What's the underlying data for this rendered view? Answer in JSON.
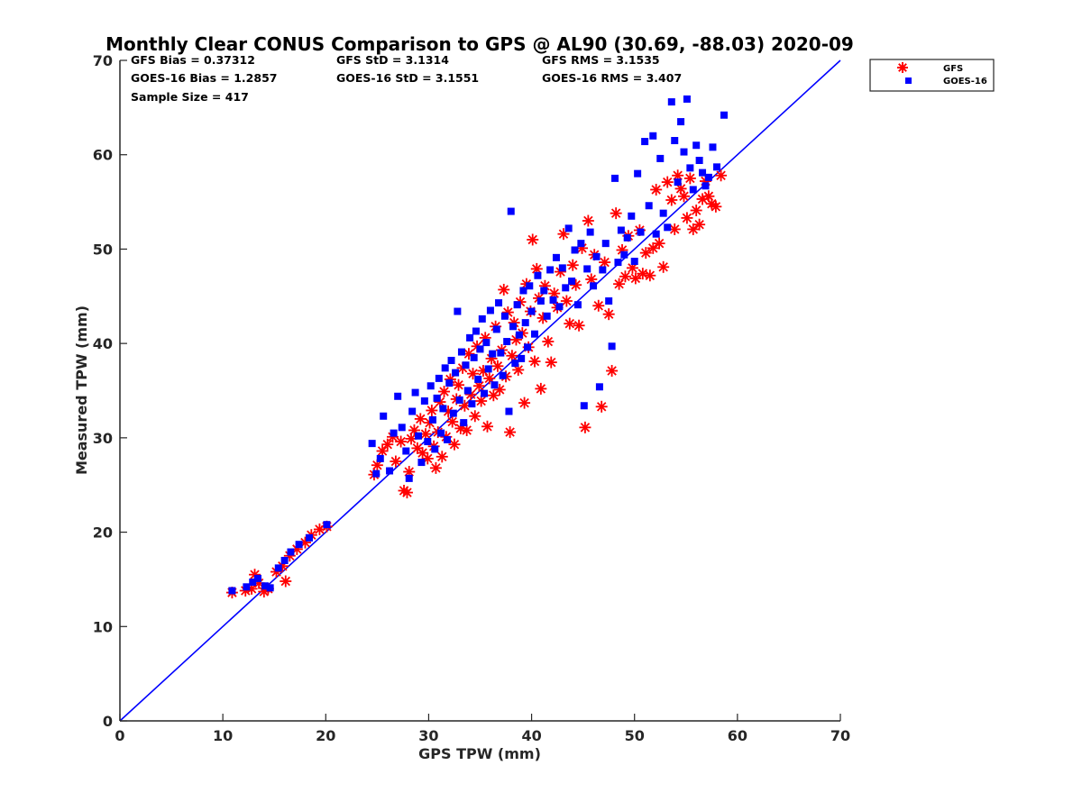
{
  "chart_data": {
    "type": "scatter",
    "title": "Monthly Clear CONUS Comparison to GPS @ AL90 (30.69, -88.03) 2020-09",
    "xlabel": "GPS TPW (mm)",
    "ylabel": "Measured TPW (mm)",
    "xlim": [
      0,
      70
    ],
    "ylim": [
      0,
      70
    ],
    "xticks": [
      "0",
      "10",
      "20",
      "30",
      "40",
      "50",
      "60",
      "70"
    ],
    "yticks": [
      "0",
      "10",
      "20",
      "30",
      "40",
      "50",
      "60",
      "70"
    ],
    "grid": false,
    "legend_position": "top-right, outside the plot area",
    "stats": [
      [
        "GFS Bias = 0.37312",
        "GFS StD = 3.1314",
        "GFS RMS = 3.1535"
      ],
      [
        "GOES-16 Bias = 1.2857",
        "GOES-16 StD = 3.1551",
        "GOES-16 RMS = 3.407"
      ],
      [
        "Sample Size = 417"
      ]
    ],
    "reference_line": {
      "from": [
        0,
        0
      ],
      "to": [
        70,
        70
      ],
      "color": "#0000ff"
    },
    "series": [
      {
        "name": "GFS",
        "marker": "asterisk",
        "color": "#ff0000",
        "points": [
          [
            10.9,
            13.6
          ],
          [
            12.2,
            13.8
          ],
          [
            12.8,
            14.0
          ],
          [
            13.1,
            15.5
          ],
          [
            13.5,
            14.6
          ],
          [
            14.0,
            13.7
          ],
          [
            14.4,
            14.0
          ],
          [
            15.2,
            15.8
          ],
          [
            15.8,
            16.4
          ],
          [
            16.1,
            14.8
          ],
          [
            16.5,
            17.5
          ],
          [
            17.2,
            18.2
          ],
          [
            18.0,
            18.9
          ],
          [
            18.6,
            19.7
          ],
          [
            19.4,
            20.3
          ],
          [
            20.1,
            20.6
          ],
          [
            24.7,
            26.1
          ],
          [
            25.0,
            27.1
          ],
          [
            25.5,
            28.6
          ],
          [
            26.0,
            29.3
          ],
          [
            26.5,
            30.1
          ],
          [
            26.8,
            27.5
          ],
          [
            27.3,
            29.6
          ],
          [
            27.6,
            24.4
          ],
          [
            27.9,
            24.2
          ],
          [
            28.1,
            26.4
          ],
          [
            28.3,
            29.9
          ],
          [
            28.6,
            30.8
          ],
          [
            28.9,
            28.9
          ],
          [
            29.2,
            32.0
          ],
          [
            29.4,
            28.4
          ],
          [
            29.7,
            30.4
          ],
          [
            29.9,
            27.8
          ],
          [
            30.1,
            31.6
          ],
          [
            30.3,
            32.9
          ],
          [
            30.5,
            29.1
          ],
          [
            30.7,
            26.8
          ],
          [
            30.9,
            30.6
          ],
          [
            31.1,
            33.8
          ],
          [
            31.3,
            28.0
          ],
          [
            31.5,
            34.9
          ],
          [
            31.7,
            30.1
          ],
          [
            31.9,
            32.8
          ],
          [
            32.1,
            36.2
          ],
          [
            32.3,
            31.7
          ],
          [
            32.5,
            29.3
          ],
          [
            32.7,
            34.1
          ],
          [
            32.9,
            35.6
          ],
          [
            33.1,
            31.0
          ],
          [
            33.3,
            37.4
          ],
          [
            33.5,
            33.4
          ],
          [
            33.7,
            30.8
          ],
          [
            33.9,
            38.9
          ],
          [
            34.1,
            34.6
          ],
          [
            34.3,
            36.8
          ],
          [
            34.5,
            32.3
          ],
          [
            34.7,
            39.7
          ],
          [
            34.9,
            35.5
          ],
          [
            35.1,
            33.9
          ],
          [
            35.3,
            37.1
          ],
          [
            35.5,
            40.6
          ],
          [
            35.7,
            31.2
          ],
          [
            35.9,
            36.3
          ],
          [
            36.1,
            38.4
          ],
          [
            36.3,
            34.5
          ],
          [
            36.5,
            41.8
          ],
          [
            36.7,
            37.6
          ],
          [
            36.9,
            35.1
          ],
          [
            37.1,
            39.3
          ],
          [
            37.3,
            45.7
          ],
          [
            37.5,
            36.5
          ],
          [
            37.7,
            43.3
          ],
          [
            37.9,
            30.6
          ],
          [
            38.1,
            38.7
          ],
          [
            38.3,
            42.2
          ],
          [
            38.5,
            40.4
          ],
          [
            38.7,
            37.2
          ],
          [
            38.9,
            44.4
          ],
          [
            39.1,
            41.1
          ],
          [
            39.3,
            33.7
          ],
          [
            39.5,
            46.3
          ],
          [
            39.7,
            39.6
          ],
          [
            39.9,
            43.4
          ],
          [
            40.1,
            51.0
          ],
          [
            40.3,
            38.1
          ],
          [
            40.5,
            47.9
          ],
          [
            40.7,
            44.8
          ],
          [
            40.9,
            35.2
          ],
          [
            41.1,
            42.7
          ],
          [
            41.3,
            46.1
          ],
          [
            41.6,
            40.2
          ],
          [
            41.9,
            38.0
          ],
          [
            42.2,
            45.3
          ],
          [
            42.5,
            43.8
          ],
          [
            42.8,
            47.6
          ],
          [
            43.1,
            51.6
          ],
          [
            43.4,
            44.5
          ],
          [
            43.7,
            42.1
          ],
          [
            44.0,
            48.3
          ],
          [
            44.3,
            46.2
          ],
          [
            44.6,
            41.9
          ],
          [
            44.9,
            50.1
          ],
          [
            45.2,
            31.1
          ],
          [
            45.5,
            53.0
          ],
          [
            45.8,
            46.8
          ],
          [
            46.1,
            49.4
          ],
          [
            46.5,
            44.0
          ],
          [
            46.8,
            33.3
          ],
          [
            47.1,
            48.6
          ],
          [
            47.5,
            43.1
          ],
          [
            47.8,
            37.1
          ],
          [
            48.2,
            53.8
          ],
          [
            48.5,
            46.3
          ],
          [
            48.8,
            49.9
          ],
          [
            49.1,
            47.1
          ],
          [
            49.4,
            51.4
          ],
          [
            49.8,
            48.0
          ],
          [
            50.1,
            46.9
          ],
          [
            50.5,
            52.0
          ],
          [
            50.8,
            47.4
          ],
          [
            51.1,
            49.6
          ],
          [
            51.5,
            47.2
          ],
          [
            51.8,
            50.1
          ],
          [
            52.1,
            56.3
          ],
          [
            52.4,
            50.6
          ],
          [
            52.8,
            48.1
          ],
          [
            53.2,
            57.1
          ],
          [
            53.6,
            55.2
          ],
          [
            53.9,
            52.1
          ],
          [
            54.2,
            57.8
          ],
          [
            54.5,
            56.4
          ],
          [
            54.8,
            55.6
          ],
          [
            55.1,
            53.3
          ],
          [
            55.4,
            57.5
          ],
          [
            55.7,
            52.1
          ],
          [
            56.0,
            54.1
          ],
          [
            56.3,
            52.6
          ],
          [
            56.6,
            55.3
          ],
          [
            56.9,
            57.2
          ],
          [
            57.2,
            55.6
          ],
          [
            57.5,
            54.8
          ],
          [
            57.9,
            54.5
          ],
          [
            58.4,
            57.8
          ]
        ]
      },
      {
        "name": "GOES-16",
        "marker": "square",
        "color": "#0000ff",
        "points": [
          [
            10.9,
            13.8
          ],
          [
            12.3,
            14.2
          ],
          [
            12.9,
            14.7
          ],
          [
            13.4,
            15.1
          ],
          [
            14.1,
            14.3
          ],
          [
            14.6,
            14.1
          ],
          [
            15.4,
            16.2
          ],
          [
            16.0,
            17.0
          ],
          [
            16.6,
            17.9
          ],
          [
            17.4,
            18.7
          ],
          [
            18.4,
            19.4
          ],
          [
            20.1,
            20.8
          ],
          [
            24.5,
            29.4
          ],
          [
            24.9,
            26.2
          ],
          [
            25.3,
            27.8
          ],
          [
            25.6,
            32.3
          ],
          [
            26.2,
            26.5
          ],
          [
            26.6,
            30.5
          ],
          [
            27.0,
            34.4
          ],
          [
            27.4,
            31.1
          ],
          [
            27.8,
            28.6
          ],
          [
            28.1,
            25.7
          ],
          [
            28.4,
            32.8
          ],
          [
            28.7,
            34.8
          ],
          [
            29.0,
            30.2
          ],
          [
            29.3,
            27.4
          ],
          [
            29.6,
            33.9
          ],
          [
            29.9,
            29.6
          ],
          [
            30.2,
            35.5
          ],
          [
            30.4,
            31.9
          ],
          [
            30.6,
            28.8
          ],
          [
            30.8,
            34.2
          ],
          [
            31.0,
            36.3
          ],
          [
            31.2,
            30.5
          ],
          [
            31.4,
            33.1
          ],
          [
            31.6,
            37.4
          ],
          [
            31.8,
            29.8
          ],
          [
            32.0,
            35.8
          ],
          [
            32.2,
            38.2
          ],
          [
            32.4,
            32.6
          ],
          [
            32.6,
            36.9
          ],
          [
            32.8,
            43.4
          ],
          [
            33.0,
            34.0
          ],
          [
            33.2,
            39.1
          ],
          [
            33.4,
            31.6
          ],
          [
            33.6,
            37.7
          ],
          [
            33.8,
            35.0
          ],
          [
            34.0,
            40.6
          ],
          [
            34.2,
            33.6
          ],
          [
            34.4,
            38.5
          ],
          [
            34.6,
            41.3
          ],
          [
            34.8,
            36.2
          ],
          [
            35.0,
            39.4
          ],
          [
            35.2,
            42.6
          ],
          [
            35.4,
            34.7
          ],
          [
            35.6,
            40.1
          ],
          [
            35.8,
            37.3
          ],
          [
            36.0,
            43.5
          ],
          [
            36.2,
            38.9
          ],
          [
            36.4,
            35.6
          ],
          [
            36.6,
            41.5
          ],
          [
            36.8,
            44.3
          ],
          [
            37.0,
            39.0
          ],
          [
            37.2,
            36.6
          ],
          [
            37.4,
            42.9
          ],
          [
            37.6,
            40.2
          ],
          [
            37.8,
            32.8
          ],
          [
            38.0,
            54.0
          ],
          [
            38.2,
            41.8
          ],
          [
            38.4,
            37.9
          ],
          [
            38.6,
            44.1
          ],
          [
            38.8,
            40.9
          ],
          [
            39.0,
            38.4
          ],
          [
            39.2,
            45.6
          ],
          [
            39.4,
            42.2
          ],
          [
            39.6,
            39.6
          ],
          [
            39.8,
            46.1
          ],
          [
            40.0,
            43.4
          ],
          [
            40.3,
            41.0
          ],
          [
            40.6,
            47.2
          ],
          [
            40.9,
            44.5
          ],
          [
            41.2,
            45.6
          ],
          [
            41.5,
            42.9
          ],
          [
            41.8,
            47.8
          ],
          [
            42.1,
            44.6
          ],
          [
            42.4,
            49.1
          ],
          [
            42.7,
            43.9
          ],
          [
            43.0,
            48.0
          ],
          [
            43.3,
            45.9
          ],
          [
            43.6,
            52.2
          ],
          [
            43.9,
            46.6
          ],
          [
            44.2,
            49.9
          ],
          [
            44.5,
            44.1
          ],
          [
            44.8,
            50.6
          ],
          [
            45.1,
            33.4
          ],
          [
            45.4,
            47.9
          ],
          [
            45.7,
            51.8
          ],
          [
            46.0,
            46.1
          ],
          [
            46.3,
            49.2
          ],
          [
            46.6,
            35.4
          ],
          [
            46.9,
            47.8
          ],
          [
            47.2,
            50.6
          ],
          [
            47.5,
            44.5
          ],
          [
            47.8,
            39.7
          ],
          [
            48.1,
            57.5
          ],
          [
            48.4,
            48.6
          ],
          [
            48.7,
            52.0
          ],
          [
            49.0,
            49.4
          ],
          [
            49.3,
            51.2
          ],
          [
            49.7,
            53.5
          ],
          [
            50.0,
            48.7
          ],
          [
            50.3,
            58.0
          ],
          [
            50.6,
            51.8
          ],
          [
            51.0,
            61.4
          ],
          [
            51.4,
            54.6
          ],
          [
            51.8,
            62.0
          ],
          [
            52.1,
            51.6
          ],
          [
            52.5,
            59.6
          ],
          [
            52.8,
            53.8
          ],
          [
            53.2,
            52.3
          ],
          [
            53.6,
            65.6
          ],
          [
            53.9,
            61.5
          ],
          [
            54.2,
            57.1
          ],
          [
            54.5,
            63.5
          ],
          [
            54.8,
            60.3
          ],
          [
            55.1,
            65.9
          ],
          [
            55.4,
            58.6
          ],
          [
            55.7,
            56.3
          ],
          [
            56.0,
            61.0
          ],
          [
            56.3,
            59.4
          ],
          [
            56.6,
            58.1
          ],
          [
            56.9,
            56.7
          ],
          [
            57.2,
            57.6
          ],
          [
            57.6,
            60.8
          ],
          [
            58.0,
            58.7
          ],
          [
            58.7,
            64.2
          ]
        ]
      }
    ]
  }
}
